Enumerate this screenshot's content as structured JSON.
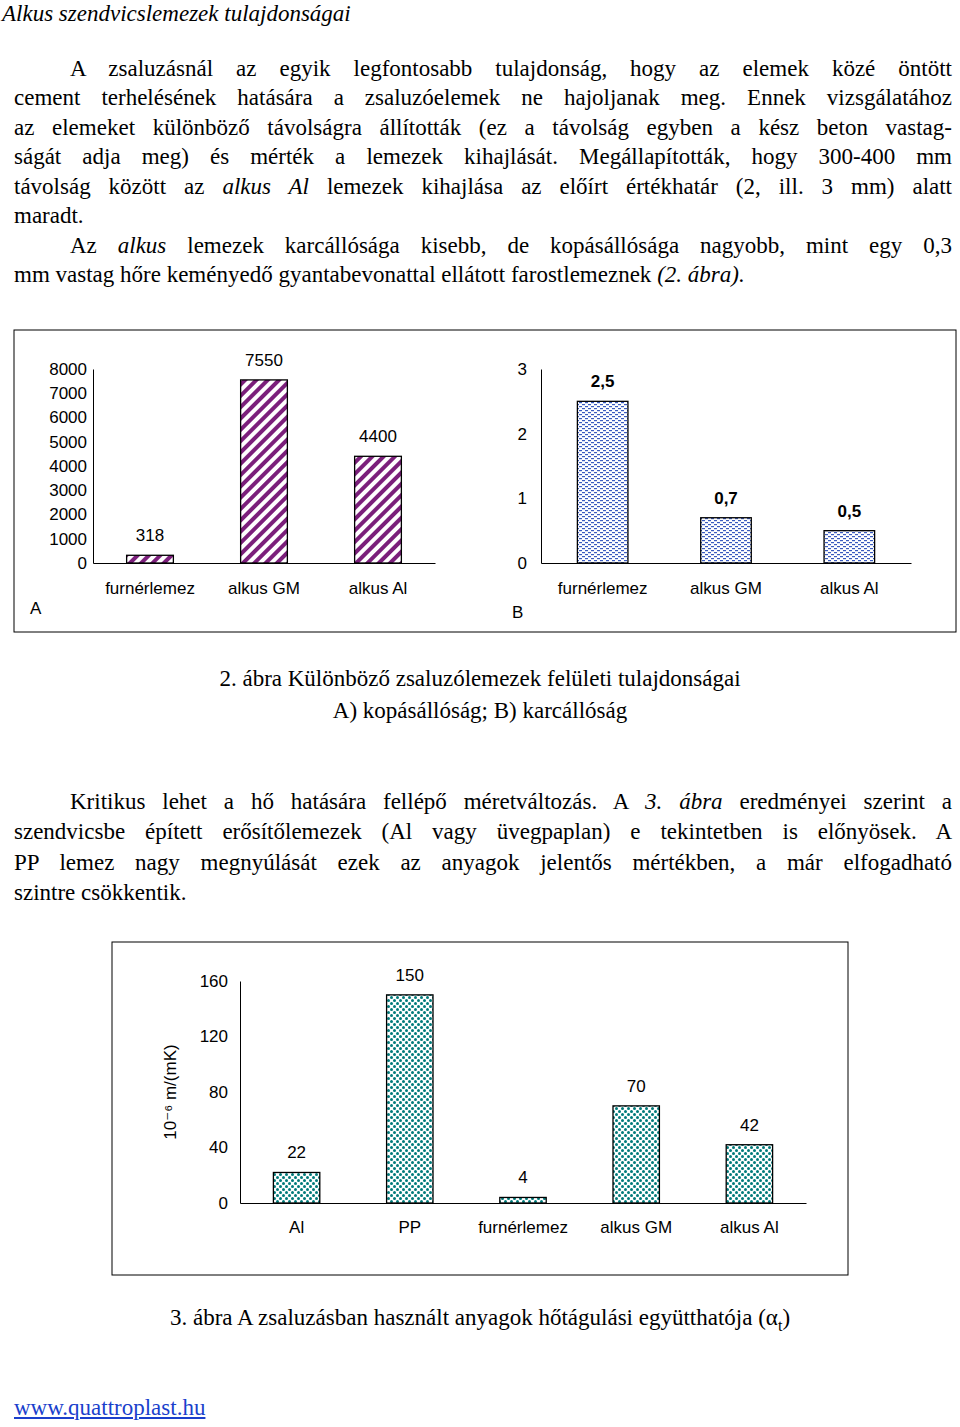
{
  "document": {
    "heading": "Alkus szendvicslemezek tulajdonságai",
    "paragraphs": [
      {
        "lines": [
          [
            {
              "text": "A zsaluzásnál az egyik legfontosabb tulajdonság, hogy az elemek közé öntött"
            }
          ],
          [
            {
              "text": "cement terhelésének hatására a zsaluzóelemek ne hajoljanak meg. Ennek vizsgálatához"
            }
          ],
          [
            {
              "text": "az elemeket különböző távolságra állították (ez a távolság egyben a kész beton vastag-"
            }
          ],
          [
            {
              "text": "ságát adja meg) és mérték a lemezek kihajlását. Megállapították, hogy 300-400 mm"
            }
          ],
          [
            {
              "text": "távolság között az "
            },
            {
              "text": "alkus Al",
              "style": "italic"
            },
            {
              "text": " lemezek kihajlása az előírt értékhatár (2, ill. 3 mm) alatt"
            }
          ],
          [
            {
              "text": "maradt."
            }
          ]
        ]
      },
      {
        "lines": [
          [
            {
              "text": "Az "
            },
            {
              "text": "alkus",
              "style": "italic"
            },
            {
              "text": " lemezek karcállósága kisebb, de kopásállósága nagyobb, mint egy 0,3"
            }
          ],
          [
            {
              "text": "mm vastag hőre keményedő gyantabevonattal ellátott farostlemeznek "
            },
            {
              "text": "(2. ábra).",
              "style": "italic"
            }
          ]
        ]
      },
      {
        "lines": [
          [
            {
              "text": "Kritikus lehet a hő hatására fellépő méretváltozás. A "
            },
            {
              "text": "3. ábra",
              "style": "italic"
            },
            {
              "text": " eredményei szerint a"
            }
          ],
          [
            {
              "text": "szendvicsbe épített erősítőlemezek (Al vagy üvegpaplan) e tekintetben is előnyösek. A"
            }
          ],
          [
            {
              "text": "PP lemez nagy megnyúlását ezek az anyagok jelentős mértékben, a már elfogadható"
            }
          ],
          [
            {
              "text": "szintre csökkentik."
            }
          ]
        ]
      }
    ],
    "captions": [
      {
        "lines": [
          [
            {
              "text": "2. ábra Különböző zsaluzólemezek felületi tulajdonságai"
            }
          ],
          [
            {
              "text": "A) kopásállóság; B) karcállóság"
            }
          ]
        ]
      },
      {
        "lines": [
          [
            {
              "text": "3. ábra A zsaluzásban használt anyagok hőtágulási együtthatója (α"
            },
            {
              "text": "t",
              "style": "subscript"
            },
            {
              "text": ")"
            }
          ]
        ]
      }
    ],
    "footer": "www.quattroplast.hu"
  },
  "chart_data": [
    {
      "type": "bar",
      "annotations": [
        "A"
      ],
      "categories": [
        "furnérlemez",
        "alkus GM",
        "alkus Al"
      ],
      "values": [
        318,
        7550,
        4400
      ],
      "color": "#7b1f7b",
      "ylim": [
        0,
        8000
      ],
      "yticks": [
        0,
        1000,
        2000,
        3000,
        4000,
        5000,
        6000,
        7000,
        8000
      ],
      "data_labels": true
    },
    {
      "type": "bar",
      "annotations": [
        "B"
      ],
      "categories": [
        "furnérlemez",
        "alkus GM",
        "alkus Al"
      ],
      "values": [
        2.5,
        0.7,
        0.5
      ],
      "value_labels": [
        "2,5",
        "0,7",
        "0,5"
      ],
      "color": "#3b5bbf",
      "ylim": [
        0,
        3
      ],
      "yticks": [
        0,
        1,
        2,
        3
      ],
      "data_labels": true
    },
    {
      "type": "bar",
      "y_label": "10⁻⁶ m/(mK)",
      "categories": [
        "Al",
        "PP",
        "furnérlemez",
        "alkus GM",
        "alkus Al"
      ],
      "values": [
        22,
        150,
        4,
        70,
        42
      ],
      "color": "#007a7a",
      "ylim": [
        0,
        160
      ],
      "yticks": [
        0,
        40,
        80,
        120,
        160
      ],
      "data_labels": true
    }
  ]
}
